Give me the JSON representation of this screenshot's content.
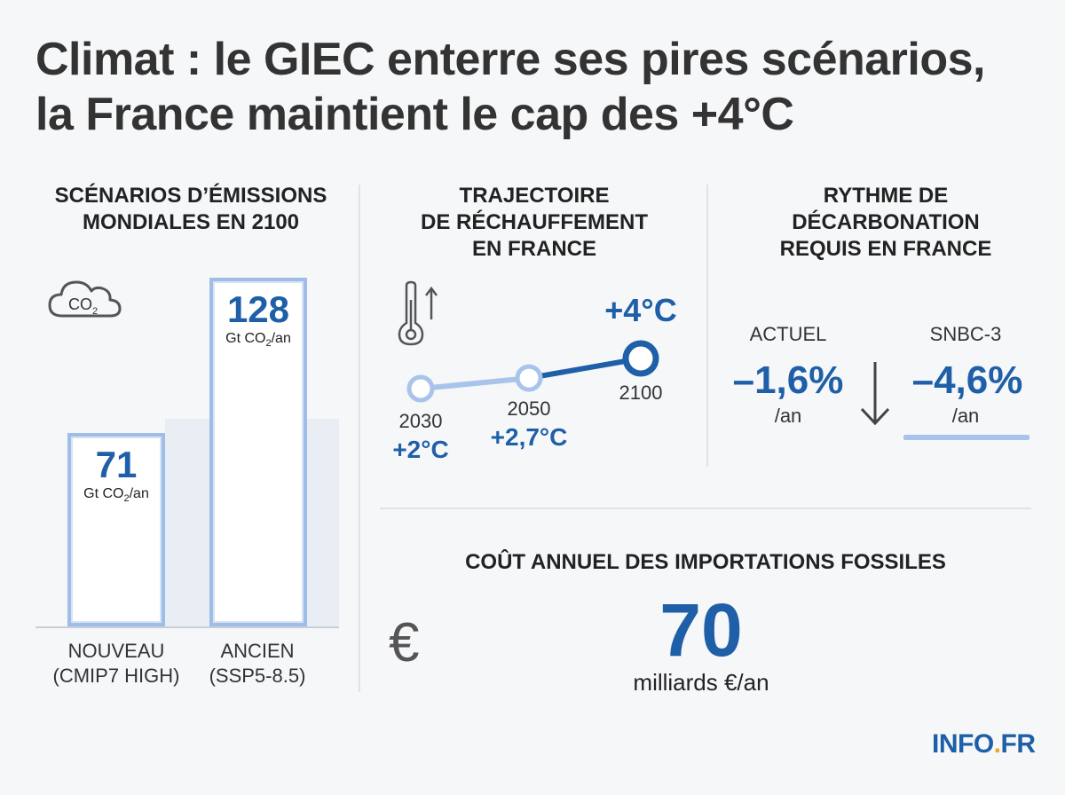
{
  "title": {
    "line1": "Climat : le GIEC enterre ses pires scénarios,",
    "line2": "la France maintient le cap des +4°C"
  },
  "emissions": {
    "heading_line1": "SCÉNARIOS D’ÉMISSIONS",
    "heading_line2": "MONDIALES EN 2100",
    "icon": "co2-cloud-icon",
    "icon_text": "CO",
    "icon_sub": "2"
  },
  "warming": {
    "heading_line1": "TRAJECTOIRE",
    "heading_line2": "DE RÉCHAUFFEMENT",
    "heading_line3": "EN FRANCE",
    "icon": "thermometer-rising-icon"
  },
  "decarbonation": {
    "heading_line1": "RYTHME DE",
    "heading_line2": "DÉCARBONATION",
    "heading_line3": "REQUIS EN FRANCE",
    "current_label": "ACTUEL",
    "current_value": "–1,6%",
    "current_unit": "/an",
    "target_label": "SNBC-3",
    "target_value": "–4,6%",
    "target_unit": "/an",
    "arrow_icon": "arrow-down-icon"
  },
  "fossil": {
    "heading": "COÛT ANNUEL DES IMPORTATIONS FOSSILES",
    "value": "70",
    "unit": "milliards €/an",
    "icon": "euro-icon",
    "icon_glyph": "€"
  },
  "logo": {
    "text1": "INFO",
    "dot": ".",
    "text2": "FR"
  },
  "colors": {
    "accent": "#1f5fa8",
    "bar_border": "#9fbde6",
    "line_light": "#a9c4ea",
    "line_dark": "#1f5fa8",
    "logo_dot": "#f0a31b"
  },
  "chart_data": [
    {
      "type": "bar",
      "categories": [
        "NOUVEAU (CMIP7 HIGH)",
        "ANCIEN (SSP5-8.5)"
      ],
      "category_lines": [
        [
          "NOUVEAU",
          "(CMIP7 HIGH)"
        ],
        [
          "ANCIEN",
          "(SSP5-8.5)"
        ]
      ],
      "values": [
        71,
        128
      ],
      "value_labels": [
        "71",
        "128"
      ],
      "unit_main": "Gt CO",
      "unit_sub": "2",
      "unit_tail": "/an",
      "ylim": [
        0,
        140
      ]
    },
    {
      "type": "line",
      "x": [
        2030,
        2050,
        2100
      ],
      "x_labels": [
        "2030",
        "2050",
        "2100"
      ],
      "values": [
        2,
        2.7,
        4
      ],
      "value_labels": [
        "+2°C",
        "+2,7°C",
        "+4°C"
      ]
    }
  ]
}
